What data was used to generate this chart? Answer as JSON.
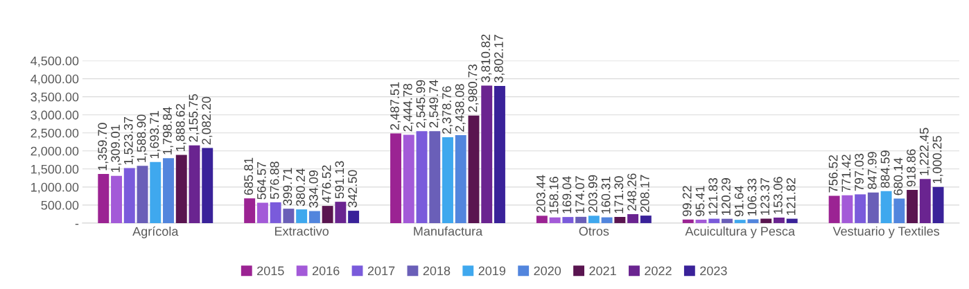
{
  "chart_data": {
    "type": "bar",
    "categories": [
      "Agrícola",
      "Extractivo",
      "Manufactura",
      "Otros",
      "Acuicultura y Pesca",
      "Vestuario y Textiles"
    ],
    "series": [
      {
        "name": "2015",
        "color": "#9b2393",
        "values": [
          1359.7,
          685.81,
          2487.51,
          203.44,
          99.22,
          756.52
        ],
        "value_labels": [
          "1,359.70",
          "685.81",
          "2,487.51",
          "203.44",
          "99.22",
          "756.52"
        ]
      },
      {
        "name": "2016",
        "color": "#a35ad8",
        "values": [
          1309.01,
          564.57,
          2444.78,
          158.16,
          95.41,
          771.42
        ],
        "value_labels": [
          "1,309.01",
          "564.57",
          "2,444.78",
          "158.16",
          "95.41",
          "771.42"
        ]
      },
      {
        "name": "2017",
        "color": "#7a5bdb",
        "values": [
          1523.37,
          576.88,
          2545.99,
          169.04,
          121.83,
          797.03
        ],
        "value_labels": [
          "1,523.37",
          "576.88",
          "2,545.99",
          "169.04",
          "121.83",
          "797.03"
        ]
      },
      {
        "name": "2018",
        "color": "#6a5fb8",
        "values": [
          1588.9,
          399.71,
          2549.74,
          174.07,
          120.29,
          847.99
        ],
        "value_labels": [
          "1,588.90",
          "399.71",
          "2,549.74",
          "174.07",
          "120.29",
          "847.99"
        ]
      },
      {
        "name": "2019",
        "color": "#3fa8ee",
        "values": [
          1693.71,
          380.24,
          2378.76,
          203.99,
          91.64,
          884.59
        ],
        "value_labels": [
          "1,693.71",
          "380.24",
          "2,378.76",
          "203.99",
          "91.64",
          "884.59"
        ]
      },
      {
        "name": "2020",
        "color": "#5285dd",
        "values": [
          1798.84,
          334.09,
          2438.08,
          160.31,
          106.33,
          680.14
        ],
        "value_labels": [
          "1,798.84",
          "334.09",
          "2,438.08",
          "160.31",
          "106.33",
          "680.14"
        ]
      },
      {
        "name": "2021",
        "color": "#5a1550",
        "values": [
          1888.62,
          476.52,
          2980.73,
          171.3,
          123.37,
          918.86
        ],
        "value_labels": [
          "1,888.62",
          "476.52",
          "2,980.73",
          "171.30",
          "123.37",
          "918.86"
        ]
      },
      {
        "name": "2022",
        "color": "#6a2490",
        "values": [
          2155.75,
          591.13,
          3810.82,
          248.26,
          153.06,
          1222.45
        ],
        "value_labels": [
          "2,155.75",
          "591.13",
          "3,810.82",
          "248.26",
          "153.06",
          "1,222.45"
        ]
      },
      {
        "name": "2023",
        "color": "#3a2299",
        "values": [
          2082.2,
          342.5,
          3802.17,
          208.17,
          121.82,
          1000.25
        ],
        "value_labels": [
          "2,082.20",
          "342.50",
          "3,802.17",
          "208.17",
          "121.82",
          "1,000.25"
        ]
      }
    ],
    "ylim": [
      0,
      4500
    ],
    "yticks": [
      {
        "value": 0,
        "label": "-"
      },
      {
        "value": 500,
        "label": "500.00"
      },
      {
        "value": 1000,
        "label": "1,000.00"
      },
      {
        "value": 1500,
        "label": "1,500.00"
      },
      {
        "value": 2000,
        "label": "2,000.00"
      },
      {
        "value": 2500,
        "label": "2,500.00"
      },
      {
        "value": 3000,
        "label": "3,000.00"
      },
      {
        "value": 3500,
        "label": "3,500.00"
      },
      {
        "value": 4000,
        "label": "4,000.00"
      },
      {
        "value": 4500,
        "label": "4,500.00"
      }
    ],
    "grid": "y",
    "legend": "bottom"
  }
}
